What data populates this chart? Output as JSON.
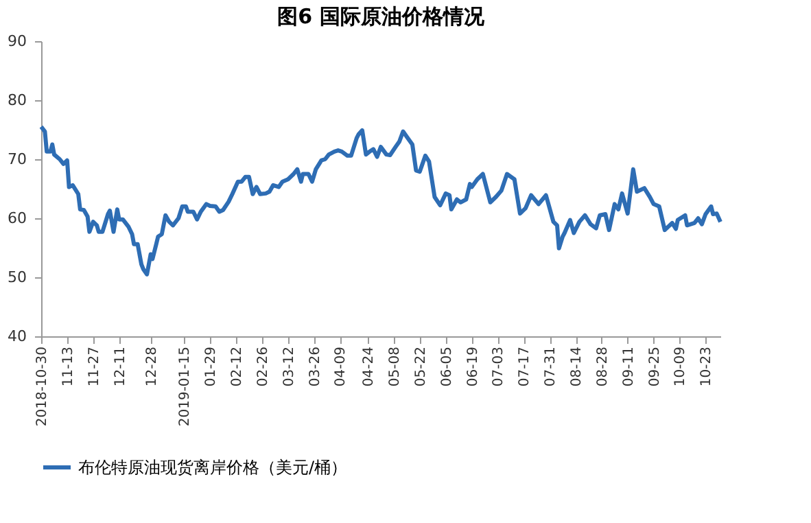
{
  "chart_data": {
    "type": "line",
    "title": "图6 国际原油价格情况",
    "x": [
      "2018-10-30",
      "2018-11-01",
      "2018-11-02",
      "2018-11-04",
      "2018-11-05",
      "2018-11-06",
      "2018-11-09",
      "2018-11-11",
      "2018-11-13",
      "2018-11-14",
      "2018-11-16",
      "2018-11-19",
      "2018-11-20",
      "2018-11-22",
      "2018-11-24",
      "2018-11-25",
      "2018-11-27",
      "2018-11-29",
      "2018-11-30",
      "2018-12-02",
      "2018-12-05",
      "2018-12-06",
      "2018-12-08",
      "2018-12-10",
      "2018-12-11",
      "2018-12-13",
      "2018-12-16",
      "2018-12-18",
      "2018-12-19",
      "2018-12-21",
      "2018-12-23",
      "2018-12-24",
      "2018-12-26",
      "2018-12-28",
      "2018-12-29",
      "2018-12-31",
      "2019-01-01",
      "2019-01-03",
      "2019-01-05",
      "2019-01-07",
      "2019-01-09",
      "2019-01-12",
      "2019-01-14",
      "2019-01-16",
      "2019-01-17",
      "2019-01-20",
      "2019-01-22",
      "2019-01-24",
      "2019-01-27",
      "2019-01-29",
      "2019-02-01",
      "2019-02-03",
      "2019-02-05",
      "2019-02-08",
      "2019-02-10",
      "2019-02-13",
      "2019-02-15",
      "2019-02-17",
      "2019-02-19",
      "2019-02-21",
      "2019-02-23",
      "2019-02-25",
      "2019-02-28",
      "2019-03-02",
      "2019-03-04",
      "2019-03-07",
      "2019-03-09",
      "2019-03-12",
      "2019-03-15",
      "2019-03-17",
      "2019-03-19",
      "2019-03-20",
      "2019-03-23",
      "2019-03-25",
      "2019-03-27",
      "2019-03-30",
      "2019-04-01",
      "2019-04-03",
      "2019-04-06",
      "2019-04-08",
      "2019-04-10",
      "2019-04-13",
      "2019-04-15",
      "2019-04-18",
      "2019-04-19",
      "2019-04-21",
      "2019-04-23",
      "2019-04-25",
      "2019-04-27",
      "2019-04-29",
      "2019-05-01",
      "2019-05-04",
      "2019-05-06",
      "2019-05-09",
      "2019-05-11",
      "2019-05-13",
      "2019-05-15",
      "2019-05-18",
      "2019-05-20",
      "2019-05-22",
      "2019-05-25",
      "2019-05-27",
      "2019-05-30",
      "2019-06-02",
      "2019-06-05",
      "2019-06-07",
      "2019-06-08",
      "2019-06-11",
      "2019-06-13",
      "2019-06-16",
      "2019-06-18",
      "2019-06-19",
      "2019-06-22",
      "2019-06-25",
      "2019-06-29",
      "2019-07-02",
      "2019-07-05",
      "2019-07-08",
      "2019-07-12",
      "2019-07-15",
      "2019-07-18",
      "2019-07-21",
      "2019-07-25",
      "2019-07-29",
      "2019-08-02",
      "2019-08-04",
      "2019-08-05",
      "2019-08-07",
      "2019-08-08",
      "2019-08-11",
      "2019-08-13",
      "2019-08-16",
      "2019-08-19",
      "2019-08-22",
      "2019-08-25",
      "2019-08-27",
      "2019-08-30",
      "2019-09-01",
      "2019-09-04",
      "2019-09-06",
      "2019-09-08",
      "2019-09-11",
      "2019-09-14",
      "2019-09-16",
      "2019-09-20",
      "2019-09-23",
      "2019-09-25",
      "2019-09-28",
      "2019-10-01",
      "2019-10-05",
      "2019-10-07",
      "2019-10-08",
      "2019-10-12",
      "2019-10-13",
      "2019-10-17",
      "2019-10-19",
      "2019-10-21",
      "2019-10-23",
      "2019-10-26",
      "2019-10-27",
      "2019-10-29",
      "2019-10-31"
    ],
    "series": [
      {
        "name": "布伦特原油现货离岸价格（美元/桶）",
        "color": "#2e6db4",
        "values": [
          75.5,
          74.7,
          71.3,
          71.3,
          72.5,
          70.8,
          70.0,
          69.2,
          69.8,
          65.3,
          65.6,
          64.1,
          61.5,
          61.4,
          60.3,
          57.7,
          59.4,
          58.8,
          57.7,
          57.7,
          60.7,
          61.3,
          57.7,
          61.5,
          59.8,
          59.8,
          58.6,
          57.3,
          55.6,
          55.6,
          52.2,
          51.4,
          50.5,
          53.9,
          53.1,
          55.6,
          56.9,
          57.3,
          60.5,
          59.4,
          58.8,
          60.0,
          62.0,
          62.0,
          61.1,
          61.1,
          59.8,
          61.1,
          62.4,
          62.1,
          62.0,
          61.1,
          61.4,
          62.8,
          64.1,
          66.2,
          66.2,
          67.0,
          67.0,
          64.1,
          65.3,
          64.1,
          64.2,
          64.5,
          65.6,
          65.3,
          66.2,
          66.6,
          67.5,
          68.3,
          66.2,
          67.5,
          67.5,
          66.2,
          68.3,
          69.8,
          70.0,
          70.8,
          71.3,
          71.5,
          71.3,
          70.6,
          70.6,
          73.6,
          74.2,
          74.9,
          70.8,
          71.3,
          71.7,
          70.4,
          72.1,
          70.8,
          70.7,
          72.1,
          73.0,
          74.7,
          73.8,
          72.5,
          68.1,
          67.9,
          70.6,
          69.6,
          63.6,
          62.2,
          64.2,
          63.9,
          61.5,
          63.2,
          62.7,
          63.2,
          65.8,
          65.3,
          66.6,
          67.5,
          62.7,
          63.6,
          64.7,
          67.5,
          66.6,
          60.8,
          61.7,
          63.9,
          62.4,
          63.9,
          59.4,
          58.8,
          54.9,
          56.9,
          57.5,
          59.7,
          57.5,
          59.4,
          60.5,
          59.0,
          58.3,
          60.5,
          60.7,
          58.0,
          62.4,
          61.5,
          64.2,
          60.8,
          68.3,
          64.5,
          65.1,
          63.6,
          62.4,
          62.0,
          58.0,
          59.2,
          58.2,
          59.7,
          60.5,
          58.8,
          59.2,
          60.0,
          59.0,
          60.7,
          62.0,
          60.7,
          60.8,
          59.4
        ]
      }
    ],
    "xlim": [
      "2018-10-30",
      "2019-10-31"
    ],
    "xticks": [
      {
        "value": "2018-10-30",
        "label": "2018-10-30"
      },
      {
        "value": "2018-11-13",
        "label": "11-13"
      },
      {
        "value": "2018-11-27",
        "label": "11-27"
      },
      {
        "value": "2018-12-11",
        "label": "12-11"
      },
      {
        "value": "2018-12-28",
        "label": "12-28"
      },
      {
        "value": "2019-01-15",
        "label": "2019-01-15"
      },
      {
        "value": "2019-01-29",
        "label": "01-29"
      },
      {
        "value": "2019-02-12",
        "label": "02-12"
      },
      {
        "value": "2019-02-26",
        "label": "02-26"
      },
      {
        "value": "2019-03-12",
        "label": "03-12"
      },
      {
        "value": "2019-03-26",
        "label": "03-26"
      },
      {
        "value": "2019-04-09",
        "label": "04-09"
      },
      {
        "value": "2019-04-24",
        "label": "04-24"
      },
      {
        "value": "2019-05-08",
        "label": "05-08"
      },
      {
        "value": "2019-05-22",
        "label": "05-22"
      },
      {
        "value": "2019-06-05",
        "label": "06-05"
      },
      {
        "value": "2019-06-19",
        "label": "06-19"
      },
      {
        "value": "2019-07-03",
        "label": "07-03"
      },
      {
        "value": "2019-07-17",
        "label": "07-17"
      },
      {
        "value": "2019-07-31",
        "label": "07-31"
      },
      {
        "value": "2019-08-14",
        "label": "08-14"
      },
      {
        "value": "2019-08-28",
        "label": "08-28"
      },
      {
        "value": "2019-09-11",
        "label": "09-11"
      },
      {
        "value": "2019-09-25",
        "label": "09-25"
      },
      {
        "value": "2019-10-09",
        "label": "10-09"
      },
      {
        "value": "2019-10-23",
        "label": "10-23"
      }
    ],
    "ylim": [
      40,
      90
    ],
    "yticks": [
      40,
      50,
      60,
      70,
      80,
      90
    ],
    "grid": false,
    "legend": "bottom",
    "marker": "none",
    "line_style": "solid"
  }
}
